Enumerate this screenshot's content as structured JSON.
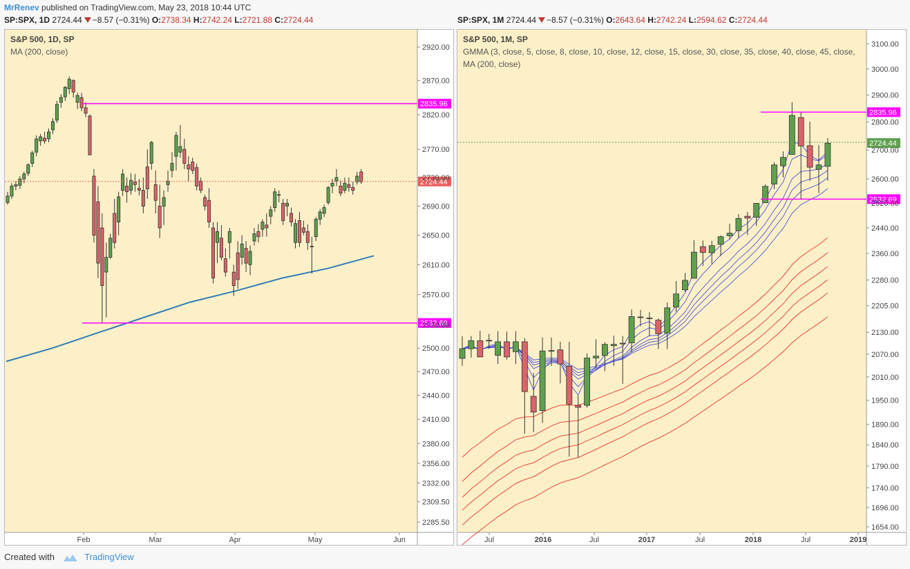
{
  "header": {
    "author": "MrRenev",
    "published_text": "published on TradingView.com, May 23, 2018 10:44 UTC"
  },
  "footer": {
    "created_with": "Created with",
    "brand": "TradingView"
  },
  "colors": {
    "background": "#fdf0c8",
    "up_candle": "#5fa04e",
    "down_candle": "#d9646a",
    "ma200": "#2f7db8",
    "levels": "#ff00ff",
    "gmma_short": "#4a55d6",
    "gmma_long": "#e8322a",
    "last_price_red": "#ea5c5c",
    "last_price_green": "#5fa04e"
  },
  "left_chart": {
    "quote": {
      "symbol": "SP:SPX, 1D",
      "last": "2724.44",
      "change": "−8.57 (−0.31%)",
      "o_label": "O:",
      "o": "2738.34",
      "h_label": "H:",
      "h": "2742.24",
      "l_label": "L:",
      "l": "2721.88",
      "c_label": "C:",
      "c": "2724.44"
    },
    "legend": [
      "S&P 500, 1D, SP",
      "MA (200, close)"
    ],
    "price_ticks": [
      "2920.00",
      "2870.00",
      "2820.00",
      "2770.00",
      "2730.00",
      "2690.00",
      "2650.00",
      "2610.00",
      "2570.00",
      "2530.00",
      "2500.00",
      "2470.00",
      "2440.00",
      "2410.00",
      "2380.00",
      "2356.00",
      "2332.00",
      "2309.50",
      "2285.50"
    ],
    "time_ticks": [
      "Feb",
      "Mar",
      "Apr",
      "May",
      "Jun"
    ],
    "level_labels": [
      "2835.96",
      "2532.69"
    ],
    "last_price_label": "2724.44"
  },
  "right_chart": {
    "quote": {
      "symbol": "SP:SPX, 1M",
      "last": "2724.44",
      "change": "−8.57 (−0.31%)",
      "o_label": "O:",
      "o": "2643.64",
      "h_label": "H:",
      "h": "2742.24",
      "l_label": "L:",
      "l": "2594.62",
      "c_label": "C:",
      "c": "2724.44"
    },
    "legend": [
      "S&P 500, 1M, SP",
      "GMMA (3, close, 5, close, 8, close, 10, close, 12, close, 15, close, 30, close, 35, close, 40, close, 45, close,",
      "MA (200, close)"
    ],
    "price_ticks": [
      "3100.00",
      "3000.00",
      "2900.00",
      "2800.00",
      "2700.00",
      "2600.00",
      "2520.00",
      "2440.00",
      "2360.00",
      "2280.00",
      "2205.00",
      "2130.00",
      "2070.00",
      "2010.00",
      "1950.00",
      "1890.00",
      "1840.00",
      "1790.00",
      "1740.00",
      "1696.00",
      "1654.00"
    ],
    "time_ticks": [
      "Jul",
      "2016",
      "Jul",
      "2017",
      "Jul",
      "2018",
      "Jul",
      "2019"
    ],
    "level_labels": [
      "2835.96",
      "2532.69"
    ],
    "last_price_label": "2724.44"
  },
  "chart_data": [
    {
      "type": "candlestick",
      "title": "S&P 500, 1D, SP",
      "xlabel": "",
      "ylabel": "",
      "y_scale": "log",
      "ylim": [
        2275,
        2940
      ],
      "x_ticks": [
        "Feb",
        "Mar",
        "Apr",
        "May",
        "Jun"
      ],
      "grid": false,
      "horizontal_levels": [
        2835.96,
        2532.69
      ],
      "last_price": 2724.44,
      "series": [
        {
          "name": "S&P 500",
          "kind": "ohlc",
          "ohlc": [
            [
              2695,
              2710,
              2692,
              2704
            ],
            [
              2704,
              2722,
              2700,
              2718
            ],
            [
              2718,
              2725,
              2712,
              2720
            ],
            [
              2719,
              2732,
              2714,
              2728
            ],
            [
              2728,
              2738,
              2722,
              2735
            ],
            [
              2736,
              2750,
              2732,
              2748
            ],
            [
              2750,
              2768,
              2745,
              2765
            ],
            [
              2766,
              2790,
              2760,
              2785
            ],
            [
              2782,
              2792,
              2775,
              2788
            ],
            [
              2786,
              2795,
              2778,
              2782
            ],
            [
              2785,
              2800,
              2780,
              2795
            ],
            [
              2798,
              2815,
              2792,
              2810
            ],
            [
              2812,
              2840,
              2808,
              2835
            ],
            [
              2838,
              2850,
              2830,
              2845
            ],
            [
              2846,
              2862,
              2840,
              2860
            ],
            [
              2858,
              2876,
              2850,
              2872
            ],
            [
              2870,
              2872,
              2845,
              2853
            ],
            [
              2838,
              2852,
              2828,
              2848
            ],
            [
              2845,
              2852,
              2825,
              2830
            ],
            [
              2830,
              2838,
              2816,
              2822
            ],
            [
              2818,
              2820,
              2762,
              2762
            ],
            [
              2732,
              2742,
              2640,
              2650
            ],
            [
              2696,
              2718,
              2592,
              2612
            ],
            [
              2660,
              2680,
              2532,
              2582
            ],
            [
              2600,
              2640,
              2540,
              2620
            ],
            [
              2620,
              2652,
              2618,
              2646
            ],
            [
              2680,
              2700,
              2632,
              2640
            ],
            [
              2668,
              2710,
              2650,
              2703
            ],
            [
              2712,
              2742,
              2704,
              2735
            ],
            [
              2718,
              2730,
              2695,
              2710
            ],
            [
              2712,
              2736,
              2706,
              2726
            ],
            [
              2724,
              2735,
              2710,
              2720
            ],
            [
              2715,
              2728,
              2705,
              2712
            ],
            [
              2712,
              2730,
              2680,
              2690
            ],
            [
              2745,
              2770,
              2700,
              2714
            ],
            [
              2750,
              2782,
              2741,
              2780
            ],
            [
              2720,
              2740,
              2680,
              2698
            ],
            [
              2690,
              2720,
              2646,
              2660
            ],
            [
              2690,
              2712,
              2664,
              2702
            ],
            [
              2720,
              2740,
              2710,
              2725
            ],
            [
              2740,
              2766,
              2730,
              2750
            ],
            [
              2760,
              2795,
              2740,
              2790
            ],
            [
              2766,
              2805,
              2758,
              2774
            ],
            [
              2770,
              2785,
              2742,
              2750
            ],
            [
              2748,
              2760,
              2725,
              2742
            ],
            [
              2752,
              2758,
              2735,
              2740
            ],
            [
              2744,
              2750,
              2712,
              2718
            ],
            [
              2725,
              2730,
              2708,
              2712
            ],
            [
              2702,
              2706,
              2684,
              2690
            ],
            [
              2698,
              2715,
              2660,
              2668
            ],
            [
              2660,
              2668,
              2585,
              2592
            ],
            [
              2640,
              2668,
              2612,
              2655
            ],
            [
              2646,
              2664,
              2616,
              2620
            ],
            [
              2618,
              2632,
              2594,
              2600
            ],
            [
              2640,
              2660,
              2618,
              2655
            ],
            [
              2600,
              2610,
              2568,
              2582
            ],
            [
              2626,
              2642,
              2578,
              2590
            ],
            [
              2620,
              2650,
              2610,
              2638
            ],
            [
              2632,
              2642,
              2600,
              2612
            ],
            [
              2610,
              2636,
              2596,
              2628
            ],
            [
              2642,
              2660,
              2636,
              2652
            ],
            [
              2655,
              2665,
              2640,
              2648
            ],
            [
              2658,
              2672,
              2648,
              2668
            ],
            [
              2664,
              2680,
              2648,
              2660
            ],
            [
              2676,
              2690,
              2665,
              2685
            ],
            [
              2688,
              2715,
              2682,
              2710
            ],
            [
              2705,
              2712,
              2695,
              2706
            ],
            [
              2694,
              2700,
              2664,
              2670
            ],
            [
              2690,
              2700,
              2676,
              2694
            ],
            [
              2680,
              2688,
              2662,
              2668
            ],
            [
              2640,
              2672,
              2632,
              2666
            ],
            [
              2670,
              2682,
              2634,
              2640
            ],
            [
              2660,
              2670,
              2650,
              2654
            ],
            [
              2655,
              2665,
              2630,
              2640
            ],
            [
              2635,
              2648,
              2598,
              2634
            ],
            [
              2648,
              2675,
              2642,
              2672
            ],
            [
              2672,
              2686,
              2664,
              2682
            ],
            [
              2680,
              2692,
              2675,
              2688
            ],
            [
              2695,
              2718,
              2692,
              2716
            ],
            [
              2718,
              2728,
              2708,
              2722
            ],
            [
              2725,
              2742,
              2718,
              2730
            ],
            [
              2718,
              2726,
              2704,
              2708
            ],
            [
              2712,
              2730,
              2708,
              2722
            ],
            [
              2720,
              2730,
              2710,
              2716
            ],
            [
              2716,
              2724,
              2706,
              2712
            ],
            [
              2724,
              2738,
              2720,
              2732
            ],
            [
              2738,
              2742,
              2721,
              2724
            ]
          ]
        },
        {
          "name": "MA (200, close)",
          "kind": "line",
          "values_approx": [
            2483,
            2500,
            2520,
            2540,
            2560,
            2575,
            2592,
            2605,
            2622
          ]
        }
      ]
    },
    {
      "type": "candlestick",
      "title": "S&P 500, 1M, SP",
      "xlabel": "",
      "ylabel": "",
      "y_scale": "log",
      "ylim": [
        1645,
        3140
      ],
      "x_ticks": [
        "Jul",
        "2016",
        "Jul",
        "2017",
        "Jul",
        "2018",
        "Jul",
        "2019"
      ],
      "grid": false,
      "horizontal_levels": [
        2835.96,
        2532.69
      ],
      "last_price": 2724.44,
      "series": [
        {
          "name": "S&P 500",
          "kind": "ohlc",
          "ohlc": [
            [
              2059,
              2119,
              2039,
              2085
            ],
            [
              2085,
              2120,
              2061,
              2107
            ],
            [
              2107,
              2134,
              2067,
              2063
            ],
            [
              2108,
              2126,
              2085,
              2107
            ],
            [
              2067,
              2133,
              2044,
              2104
            ],
            [
              2104,
              2132,
              2056,
              2063
            ],
            [
              2077,
              2133,
              2044,
              2104
            ],
            [
              2104,
              2114,
              1867,
              1972
            ],
            [
              1960,
              2020,
              1871,
              1920
            ],
            [
              1924,
              2116,
              1893,
              2079
            ],
            [
              2080,
              2116,
              2039,
              2080
            ],
            [
              2082,
              2104,
              1993,
              2044
            ],
            [
              2038,
              2104,
              1812,
              1940
            ],
            [
              1937,
              1962,
              1810,
              1932
            ],
            [
              1937,
              2072,
              1931,
              2060
            ],
            [
              2060,
              2111,
              2033,
              2065
            ],
            [
              2067,
              2103,
              2025,
              2097
            ],
            [
              2093,
              2121,
              2039,
              2097
            ],
            [
              2100,
              2120,
              1992,
              2099
            ],
            [
              2101,
              2194,
              2075,
              2174
            ],
            [
              2173,
              2193,
              2147,
              2171
            ],
            [
              2170,
              2187,
              2119,
              2168
            ],
            [
              2164,
              2169,
              2084,
              2126
            ],
            [
              2128,
              2214,
              2084,
              2199
            ],
            [
              2201,
              2277,
              2187,
              2239
            ],
            [
              2251,
              2301,
              2245,
              2279
            ],
            [
              2285,
              2401,
              2285,
              2364
            ],
            [
              2381,
              2400,
              2322,
              2363
            ],
            [
              2362,
              2399,
              2329,
              2384
            ],
            [
              2388,
              2416,
              2352,
              2412
            ],
            [
              2415,
              2453,
              2403,
              2423
            ],
            [
              2431,
              2484,
              2407,
              2470
            ],
            [
              2477,
              2491,
              2417,
              2471
            ],
            [
              2474,
              2520,
              2446,
              2519
            ],
            [
              2521,
              2582,
              2520,
              2575
            ],
            [
              2583,
              2657,
              2566,
              2648
            ],
            [
              2645,
              2695,
              2605,
              2674
            ],
            [
              2684,
              2873,
              2682,
              2824
            ],
            [
              2816,
              2835,
              2532,
              2714
            ],
            [
              2715,
              2801,
              2594,
              2640
            ],
            [
              2633,
              2717,
              2553,
              2648
            ],
            [
              2643,
              2742,
              2594,
              2724
            ]
          ]
        },
        {
          "name": "GMMA short (3,5,8,10,12,15)",
          "kind": "lines",
          "color_key": "gmma_short"
        },
        {
          "name": "GMMA long (30,35,40,45,50,60)",
          "kind": "lines",
          "color_key": "gmma_long"
        }
      ]
    }
  ]
}
